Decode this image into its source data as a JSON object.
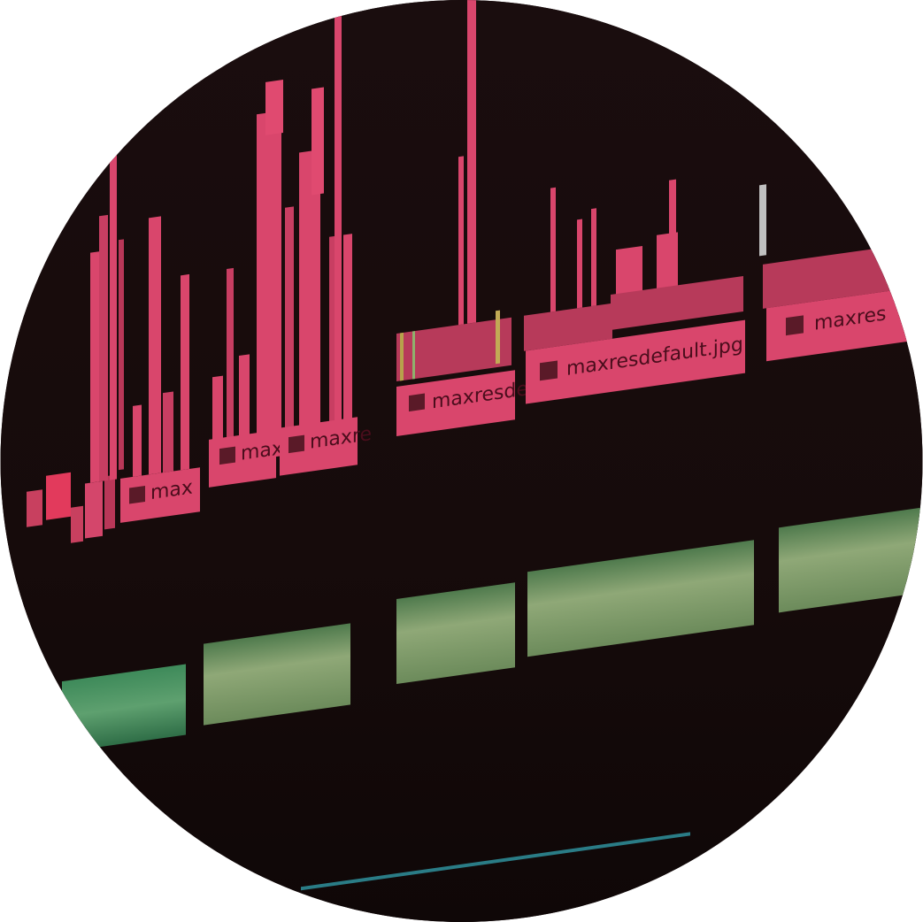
{
  "photo": {
    "subject": "timeline-editor-closeup",
    "palette": {
      "background": "#170c0c",
      "video_clip": "#d9466c",
      "video_clip_dark": "#b73a5a",
      "audio_clip": "#6e8f5a",
      "audio_clip_light": "#a9b889",
      "track_bg": "#231212"
    },
    "clip_labels": [
      {
        "text": "max"
      },
      {
        "text": "maxi"
      },
      {
        "text": "maxre"
      },
      {
        "text": "maxresde"
      },
      {
        "text": "maxresdefault.jpg"
      },
      {
        "text": "maxres"
      }
    ]
  }
}
